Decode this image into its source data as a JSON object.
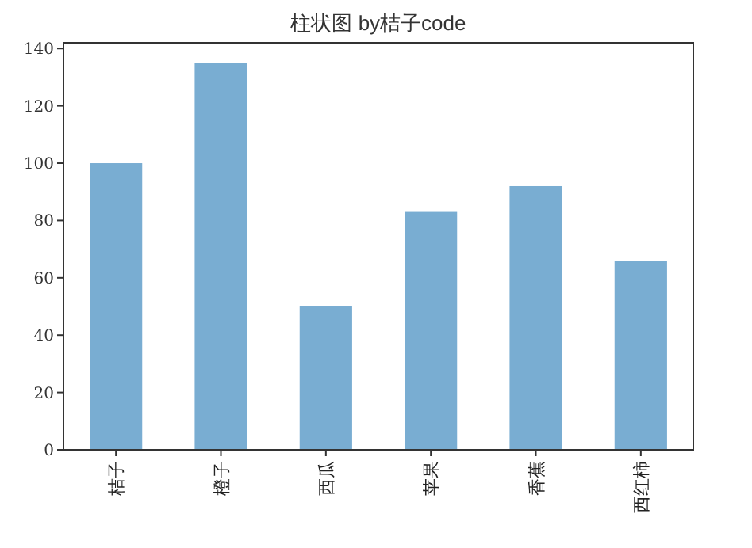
{
  "chart_data": {
    "type": "bar",
    "title": "柱状图 by桔子code",
    "categories": [
      "桔子",
      "橙子",
      "西瓜",
      "苹果",
      "香蕉",
      "西红柿"
    ],
    "values": [
      100,
      135,
      50,
      83,
      92,
      66
    ],
    "color": "#79add2",
    "ylim": [
      0,
      142
    ],
    "yticks": [
      0,
      20,
      40,
      60,
      80,
      100,
      120,
      140
    ]
  }
}
